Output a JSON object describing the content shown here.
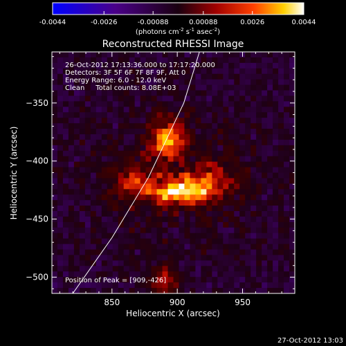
{
  "chart_data": {
    "type": "heatmap",
    "title": "Reconstructed RHESSI Image",
    "xlabel": "Heliocentric X (arcsec)",
    "ylabel": "Heliocentric Y (arcsec)",
    "xlim": [
      804,
      990
    ],
    "ylim": [
      -514,
      -306
    ],
    "xticks": [
      850,
      900,
      950
    ],
    "yticks": [
      -350,
      -400,
      -450,
      -500
    ],
    "colorbar": {
      "ticks": [
        "-0.0044",
        "-0.0026",
        "-0.00088",
        "0.00088",
        "0.0026",
        "0.0044"
      ],
      "range": [
        -0.0044,
        0.0044
      ],
      "units_line1": "(photons cm",
      "units_sup1": "-2",
      "units_line2": " s",
      "units_sup2": "-1",
      "units_line3": " asec",
      "units_sup3": "-2",
      "units_line4": ")"
    },
    "annotations": [
      "26-Oct-2012 17:13:36.000 to 17:17:20.000",
      "Detectors: 3F 5F 6F 7F 8F 9F, Att 0",
      "Energy Range: 6.0 - 12.0 keV",
      "Clean     Total counts: 8.08E+03"
    ],
    "peak_label": "Position of Peak = [909,-426]",
    "peak": [
      909,
      -426
    ],
    "limb_curve": [
      [
        820,
        -514
      ],
      [
        850,
        -466
      ],
      [
        878,
        -414
      ],
      [
        905,
        -350
      ],
      [
        917,
        -306
      ]
    ],
    "sources": [
      {
        "x": 905,
        "y": -426,
        "amp": 1.0,
        "sx": 16,
        "sy": 8
      },
      {
        "x": 893,
        "y": -382,
        "amp": 0.75,
        "sx": 9,
        "sy": 12
      },
      {
        "x": 866,
        "y": -418,
        "amp": 0.45,
        "sx": 12,
        "sy": 10
      },
      {
        "x": 890,
        "y": -502,
        "amp": 0.5,
        "sx": 7,
        "sy": 8
      },
      {
        "x": 930,
        "y": -412,
        "amp": 0.35,
        "sx": 10,
        "sy": 10
      }
    ]
  },
  "footer": {
    "timestamp": "27-Oct-2012 13:03"
  }
}
